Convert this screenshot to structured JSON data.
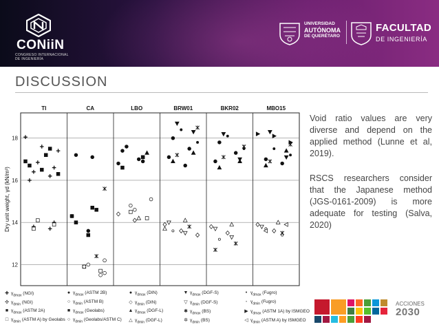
{
  "header": {
    "brand_name": "CONiiN",
    "brand_sub": "CONGRESO INTERNACIONAL DE INGENIERÍA",
    "univ_line1": "UNIVERSIDAD",
    "univ_line2": "AUTÓNOMA",
    "univ_line3": "DE QUERÉTARO",
    "faculty_title": "FACULTAD",
    "faculty_sub": "DE INGENIERÍA"
  },
  "slide": {
    "title": "DISCUSSION",
    "paragraph1": "Void ratio values are very diverse and depend on the applied method (Lunne et al, 2019).",
    "paragraph2": "RSCS researchers consider that the Japanese method (JGS-0161-2009) is more adequate for testing (Salva, 2020)"
  },
  "footer": {
    "acciones_label": "ACCIONES",
    "acciones_year": "2030"
  },
  "colors": {
    "banner_dark": "#0b0b1a",
    "banner_purple": "#8a2c82",
    "title_gray": "#555555",
    "text_gray": "#444444"
  },
  "chart_data": {
    "type": "scatter",
    "title": "",
    "ylabel": "Dry unit weight, γd (kN/m³)",
    "xlabel": "",
    "ylim": [
      11,
      19.2
    ],
    "yticks": [
      12,
      14,
      16,
      18
    ],
    "grid": true,
    "categories": [
      "TI",
      "CA",
      "LBO",
      "BRW01",
      "BKR02",
      "MBO15"
    ],
    "series": [
      {
        "name": "γdmax (NGI)",
        "symbol": "plus-filled",
        "values": {
          "TI": [
            18.05,
            17.6,
            17.4,
            16.85,
            16.6,
            16.4,
            16.2,
            16.0
          ],
          "CA": [],
          "LBO": [],
          "BRW01": [],
          "BKR02": [],
          "MBO15": []
        }
      },
      {
        "name": "γdmin (NGI)",
        "symbol": "plus-open",
        "values": {
          "TI": [
            14.0,
            13.8,
            13.7
          ],
          "CA": [],
          "LBO": [],
          "BRW01": [],
          "BKR02": [],
          "MBO15": []
        }
      },
      {
        "name": "γdmax (ASTM 2A)",
        "symbol": "square-filled",
        "values": {
          "TI": [
            17.2,
            16.9,
            16.5,
            16.3
          ],
          "CA": [
            14.7,
            14.3,
            13.4
          ],
          "LBO": [],
          "BRW01": [],
          "BKR02": [],
          "MBO15": []
        }
      },
      {
        "name": "γdmin (ASTM A) by Geolabs",
        "symbol": "square-open",
        "values": {
          "TI": [
            14.1,
            13.9,
            13.7
          ],
          "CA": [
            11.9,
            11.7
          ],
          "LBO": [
            14.5,
            14.2
          ],
          "BRW01": [],
          "BKR02": [],
          "MBO15": []
        }
      },
      {
        "name": "γdmax (ASTM 2B)",
        "symbol": "circle-filled",
        "values": {
          "TI": [],
          "CA": [
            17.2,
            17.1,
            14.3,
            13.6
          ],
          "LBO": [
            17.4,
            17.0,
            16.8
          ],
          "BRW01": [],
          "BKR02": [],
          "MBO15": []
        }
      },
      {
        "name": "γdmin (ASTM B)",
        "symbol": "circle-open",
        "values": {
          "TI": [],
          "CA": [
            12.2,
            11.9,
            11.5
          ],
          "LBO": [
            15.1,
            14.8
          ],
          "BRW01": [],
          "BKR02": [],
          "MBO15": []
        }
      },
      {
        "name": "γdmax (Geolabs)",
        "symbol": "square-filled-alt",
        "values": {
          "TI": [
            17.5,
            16.7
          ],
          "CA": [
            14.6,
            14.0
          ],
          "LBO": [
            17.1,
            16.6
          ],
          "BRW01": [],
          "BKR02": [],
          "MBO15": []
        }
      },
      {
        "name": "γdmin (Geolabs/ASTM C)",
        "symbol": "circle-open-alt",
        "values": {
          "TI": [],
          "CA": [
            12.0,
            11.6
          ],
          "LBO": [
            14.6
          ],
          "BRW01": [],
          "BKR02": [],
          "MBO15": []
        }
      },
      {
        "name": "γdmax (DIN)",
        "symbol": "circle-filled-alt",
        "values": {
          "TI": [],
          "CA": [],
          "LBO": [
            17.6,
            16.9
          ],
          "BRW01": [
            18.0,
            17.5,
            17.1,
            16.7
          ],
          "BKR02": [
            17.8,
            17.3,
            16.9
          ],
          "MBO15": [
            17.0,
            16.8
          ]
        }
      },
      {
        "name": "γdmin (DIN)",
        "symbol": "diamond-open",
        "values": {
          "TI": [],
          "CA": [],
          "LBO": [
            14.4,
            14.1
          ],
          "BRW01": [
            13.9,
            13.6,
            13.4
          ],
          "BKR02": [
            13.8,
            13.5
          ],
          "MBO15": [
            13.9,
            13.6
          ]
        }
      },
      {
        "name": "γdmax (DGF-L)",
        "symbol": "triangle-up-filled",
        "values": {
          "TI": [],
          "CA": [],
          "LBO": [
            17.3
          ],
          "BRW01": [
            17.3,
            16.9
          ],
          "BKR02": [
            16.9,
            16.6
          ],
          "MBO15": [
            17.4,
            16.7
          ]
        }
      },
      {
        "name": "γdmin (DGF-L)",
        "symbol": "triangle-up-open",
        "values": {
          "TI": [],
          "CA": [],
          "LBO": [
            14.2
          ],
          "BRW01": [
            14.1,
            13.7
          ],
          "BKR02": [
            13.9
          ],
          "MBO15": [
            14.0
          ]
        }
      },
      {
        "name": "γdmax (DGF-S)",
        "symbol": "triangle-down-filled",
        "values": {
          "TI": [],
          "CA": [],
          "LBO": [],
          "BRW01": [
            18.7,
            18.3
          ],
          "BKR02": [
            18.2,
            17.0
          ],
          "MBO15": [
            18.3,
            17.1
          ]
        }
      },
      {
        "name": "γdmin (DGF-S)",
        "symbol": "triangle-down-open",
        "values": {
          "TI": [],
          "CA": [],
          "LBO": [],
          "BRW01": [
            14.0,
            13.5
          ],
          "BKR02": [
            13.7,
            13.3
          ],
          "MBO15": [
            13.8
          ]
        }
      },
      {
        "name": "γdmax (BS)",
        "symbol": "star-filled",
        "values": {
          "TI": [],
          "CA": [
            15.6
          ],
          "LBO": [],
          "BRW01": [
            18.5,
            17.2
          ],
          "BKR02": [
            17.6,
            17.1
          ],
          "MBO15": [
            17.7,
            16.9
          ]
        }
      },
      {
        "name": "γdmin (BS)",
        "symbol": "star-open",
        "values": {
          "TI": [],
          "CA": [
            12.4
          ],
          "LBO": [],
          "BRW01": [
            13.8
          ],
          "BKR02": [
            13.0,
            12.7
          ],
          "MBO15": [
            13.5
          ]
        }
      },
      {
        "name": "γdmax (Fugro)",
        "symbol": "circle-filled-small",
        "values": {
          "TI": [],
          "CA": [],
          "LBO": [],
          "BRW01": [
            18.4,
            17.8
          ],
          "BKR02": [
            18.1,
            17.5
          ],
          "MBO15": [
            17.5,
            17.2
          ]
        }
      },
      {
        "name": "γdmin (Fugro)",
        "symbol": "circle-open-small",
        "values": {
          "TI": [],
          "CA": [],
          "LBO": [],
          "BRW01": [
            13.6
          ],
          "BKR02": [
            13.2
          ],
          "MBO15": [
            13.7,
            13.4
          ]
        }
      },
      {
        "name": "γdmax (ASTM 1A) by ISMGEO",
        "symbol": "triangle-right-filled",
        "values": {
          "TI": [],
          "CA": [],
          "LBO": [],
          "BRW01": [],
          "BKR02": [],
          "MBO15": [
            18.2,
            18.1,
            17.8
          ]
        }
      },
      {
        "name": "γdmin (ASTM A) by ISMGEO",
        "symbol": "triangle-left-open",
        "values": {
          "TI": [],
          "CA": [],
          "LBO": [],
          "BRW01": [],
          "BKR02": [],
          "MBO15": [
            13.9,
            13.6
          ]
        }
      }
    ],
    "legend": [
      {
        "base": "γ",
        "sub": "dmax",
        "rest": " (NGI)",
        "sym": "✚"
      },
      {
        "base": "γ",
        "sub": "dmin",
        "rest": " (NGI)",
        "sym": "✣"
      },
      {
        "base": "γ",
        "sub": "dmax",
        "rest": " (ASTM 2A)",
        "sym": "■"
      },
      {
        "base": "γ",
        "sub": "dmin",
        "rest": " (ASTM A) by Geolabs",
        "sym": "□"
      },
      {
        "base": "γ",
        "sub": "dmax",
        "rest": " (ASTM 2B)",
        "sym": "●"
      },
      {
        "base": "γ",
        "sub": "dmin",
        "rest": " (ASTM B)",
        "sym": "○"
      },
      {
        "base": "γ",
        "sub": "dmax",
        "rest": " (Geolabs)",
        "sym": "■"
      },
      {
        "base": "γ",
        "sub": "dmin",
        "rest": " (Geolabs/ASTM C)",
        "sym": "○"
      },
      {
        "base": "γ",
        "sub": "dmax",
        "rest": " (DIN)",
        "sym": "●"
      },
      {
        "base": "γ",
        "sub": "dmin",
        "rest": " (DIN)",
        "sym": "◇"
      },
      {
        "base": "γ",
        "sub": "dmax",
        "rest": " (DGF-L)",
        "sym": "▲"
      },
      {
        "base": "γ",
        "sub": "dmin",
        "rest": " (DGF-L)",
        "sym": "△"
      },
      {
        "base": "γ",
        "sub": "dmax",
        "rest": " (DGF-S)",
        "sym": "▼"
      },
      {
        "base": "γ",
        "sub": "dmin",
        "rest": " (DGF-S)",
        "sym": "▽"
      },
      {
        "base": "γ",
        "sub": "dmax",
        "rest": " (BS)",
        "sym": "✱"
      },
      {
        "base": "γ",
        "sub": "dmin",
        "rest": " (BS)",
        "sym": "✲"
      },
      {
        "base": "γ",
        "sub": "dmax",
        "rest": " (Fugro)",
        "sym": "•"
      },
      {
        "base": "γ",
        "sub": "dmin",
        "rest": " (Fugro)",
        "sym": "◦"
      },
      {
        "base": "γ",
        "sub": "dmax",
        "rest": " (ASTM 1A) by ISMGEO",
        "sym": "▶"
      },
      {
        "base": "γ",
        "sub": "dmin",
        "rest": " (ASTM A) by ISMGEO",
        "sym": "◁"
      }
    ]
  }
}
